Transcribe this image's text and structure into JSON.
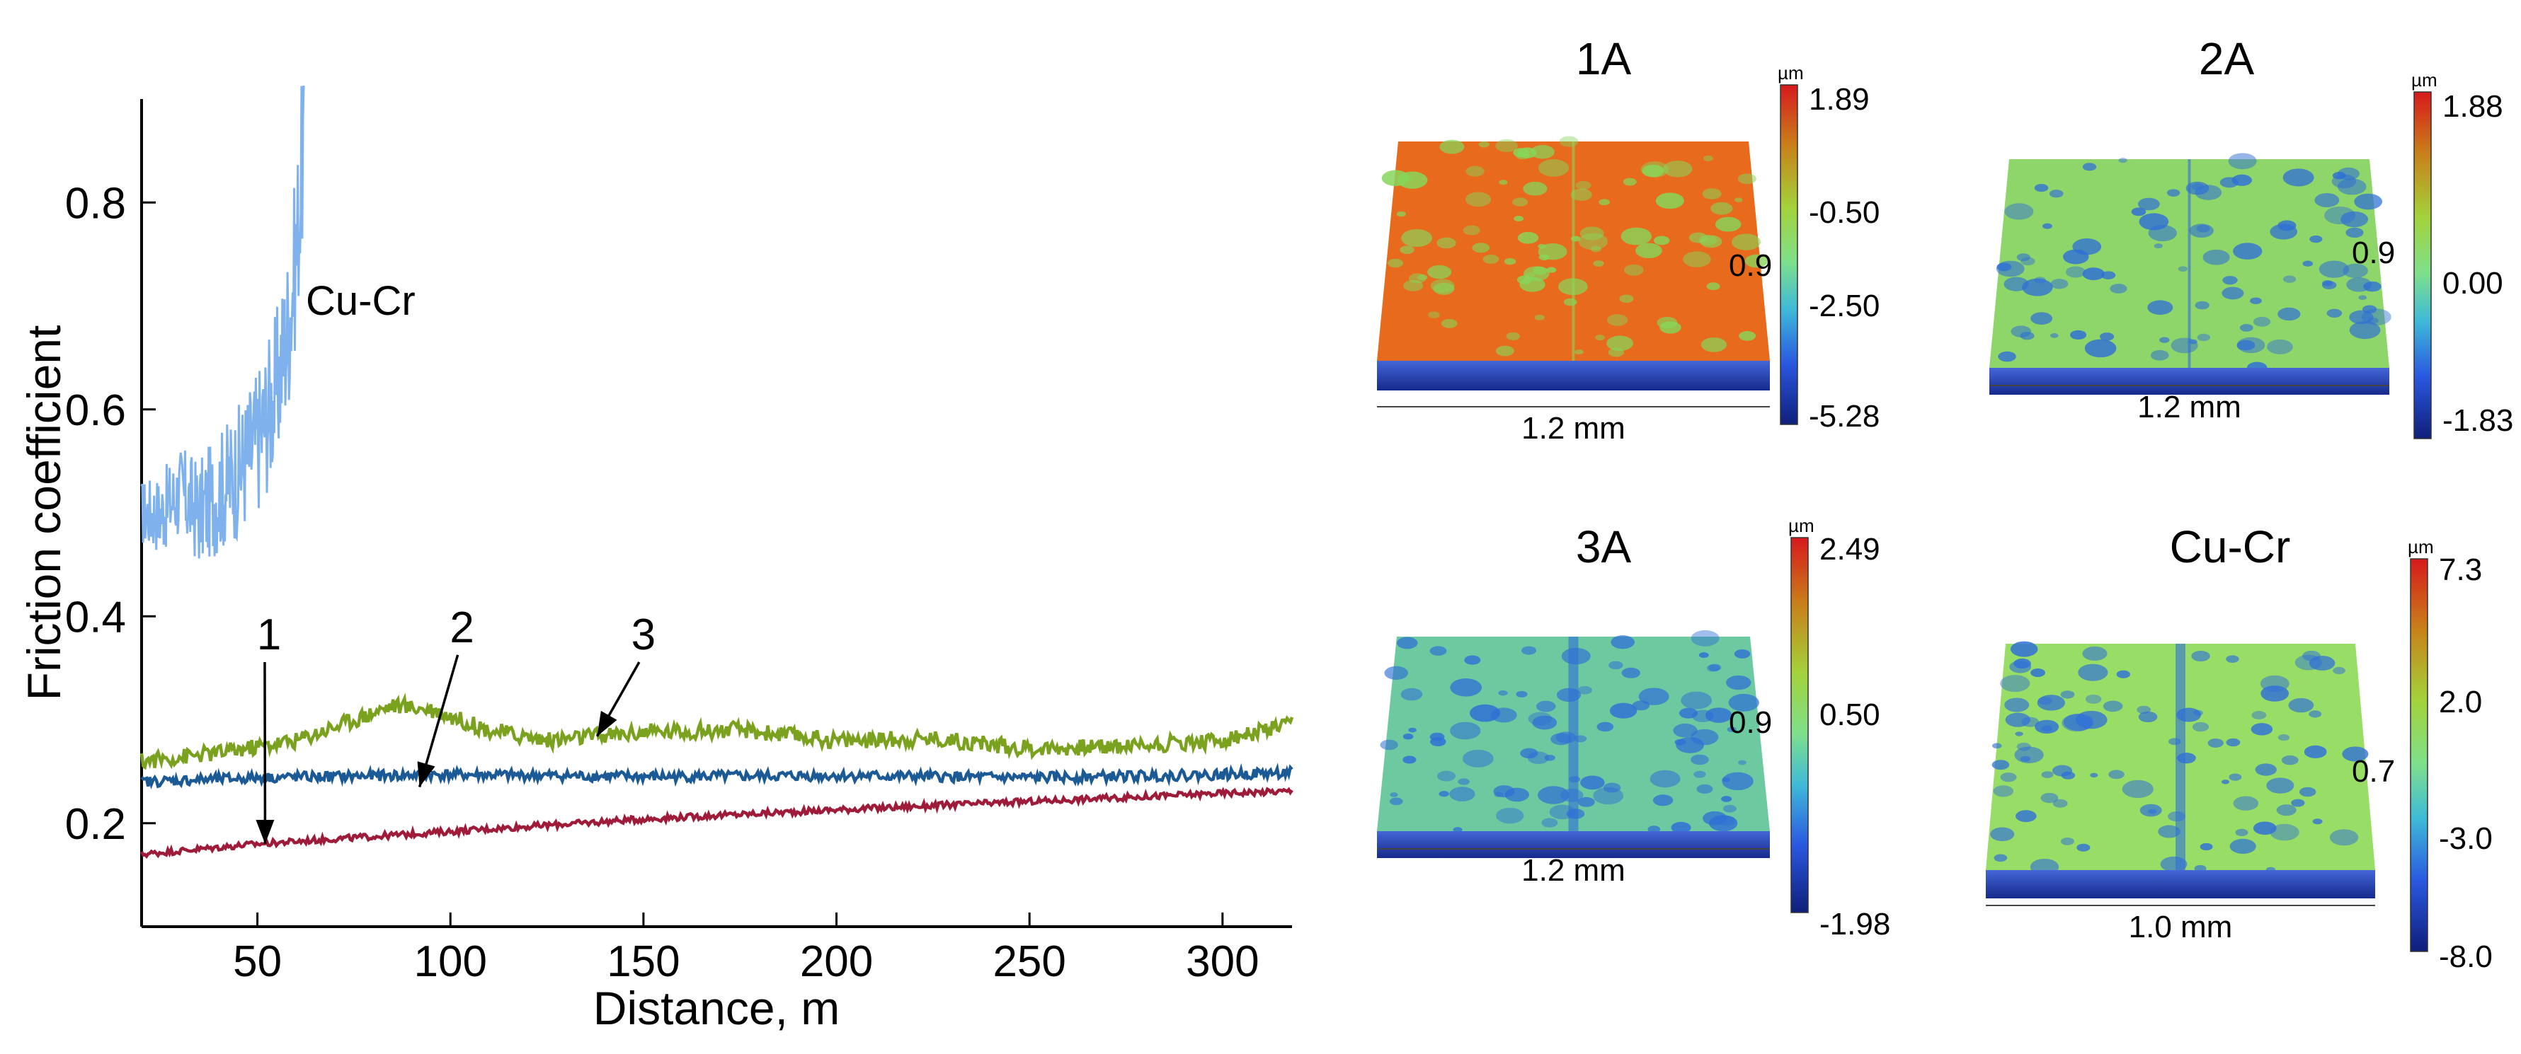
{
  "chart_data": [
    {
      "type": "line",
      "title": "",
      "xlabel": "Distance, m",
      "ylabel": "Friction coefficient",
      "xlim": [
        20,
        318
      ],
      "ylim": [
        0.1,
        0.9
      ],
      "xticks": [
        50,
        100,
        150,
        200,
        250,
        300
      ],
      "yticks": [
        0.2,
        0.4,
        0.6,
        0.8
      ],
      "xtick_labels": [
        "50",
        "100",
        "150",
        "200",
        "250",
        "300"
      ],
      "ytick_labels": [
        "0.2",
        "0.4",
        "0.6",
        "0.8"
      ],
      "grid": false,
      "series": [
        {
          "name": "Cu-Cr",
          "label": "Cu-Cr",
          "color": "#7fb2ec",
          "x": [
            20,
            25,
            30,
            35,
            40,
            45,
            50,
            55,
            58,
            60,
            62
          ],
          "y": [
            0.5,
            0.5,
            0.52,
            0.5,
            0.52,
            0.54,
            0.57,
            0.62,
            0.68,
            0.75,
            0.86
          ]
        },
        {
          "name": "1",
          "label": "1",
          "color": "#9e1b3a",
          "x": [
            20,
            50,
            100,
            150,
            200,
            250,
            300,
            318
          ],
          "y": [
            0.17,
            0.18,
            0.192,
            0.204,
            0.213,
            0.221,
            0.229,
            0.231
          ]
        },
        {
          "name": "2",
          "label": "2",
          "color": "#1c5a96",
          "x": [
            20,
            50,
            100,
            150,
            200,
            250,
            300,
            318
          ],
          "y": [
            0.24,
            0.244,
            0.247,
            0.245,
            0.246,
            0.244,
            0.247,
            0.249
          ]
        },
        {
          "name": "3",
          "label": "3",
          "color": "#7aa21e",
          "x": [
            20,
            40,
            60,
            75,
            85,
            95,
            110,
            125,
            150,
            175,
            200,
            225,
            250,
            275,
            300,
            318
          ],
          "y": [
            0.26,
            0.268,
            0.28,
            0.3,
            0.314,
            0.31,
            0.29,
            0.28,
            0.288,
            0.29,
            0.28,
            0.282,
            0.272,
            0.275,
            0.28,
            0.295
          ]
        }
      ],
      "annotations": [
        {
          "label": "1",
          "x": 52,
          "y": 0.18,
          "text_x": 53,
          "text_y": 0.368
        },
        {
          "label": "2",
          "x": 92,
          "y": 0.235,
          "text_x": 103,
          "text_y": 0.375
        },
        {
          "label": "3",
          "x": 138,
          "y": 0.284,
          "text_x": 150,
          "text_y": 0.368
        }
      ]
    },
    {
      "type": "heatmap",
      "title": "1A",
      "colorbar_unit": "µm",
      "colorbar_ticks": [
        "1.89",
        "-0.50",
        "-2.50",
        "-5.28"
      ],
      "width_label": "1.2 mm",
      "depth_label": "0.9",
      "dominant_color": "#e86a1c",
      "spot_color": "#86d65a"
    },
    {
      "type": "heatmap",
      "title": "2A",
      "colorbar_unit": "µm",
      "colorbar_ticks": [
        "1.88",
        "0.00",
        "-1.83"
      ],
      "width_label": "1.2 mm",
      "depth_label": "0.9",
      "dominant_color": "#8fd66a",
      "spot_color": "#2f6fd6"
    },
    {
      "type": "heatmap",
      "title": "3A",
      "colorbar_unit": "µm",
      "colorbar_ticks": [
        "2.49",
        "0.50",
        "-1.98"
      ],
      "width_label": "1.2 mm",
      "depth_label": "0.9",
      "dominant_color": "#6cc9a0",
      "spot_color": "#2f6fd6"
    },
    {
      "type": "heatmap",
      "title": "Cu-Cr",
      "colorbar_unit": "µm",
      "colorbar_ticks": [
        "7.3",
        "2.0",
        "-3.0",
        "-8.0"
      ],
      "width_label": "1.0 mm",
      "depth_label": "0.7",
      "dominant_color": "#98de66",
      "spot_color": "#3070d8"
    }
  ]
}
